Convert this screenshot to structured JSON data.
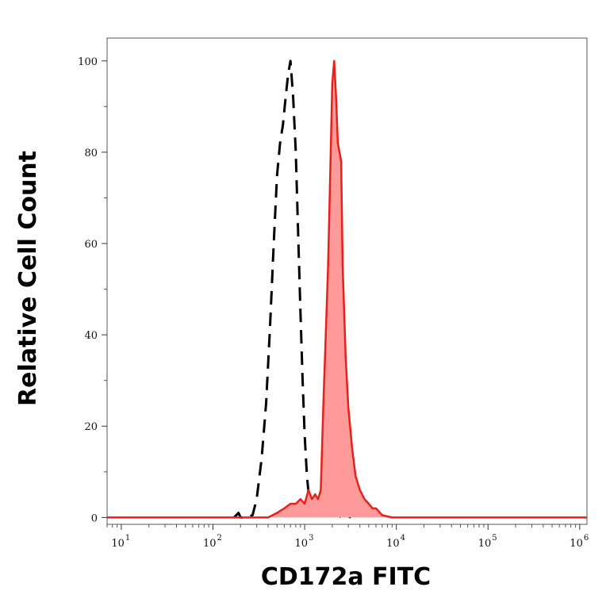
{
  "chart_data": {
    "type": "area",
    "xlabel": "CD172a FITC",
    "ylabel": "Relative Cell Count",
    "x_scale": "log",
    "xlim": [
      7,
      1200000
    ],
    "ylim": [
      -1.5,
      105
    ],
    "y_ticks": [
      0,
      20,
      40,
      60,
      80,
      100
    ],
    "x_ticks": [
      {
        "value": 10,
        "base": "10",
        "exp": "1"
      },
      {
        "value": 100,
        "base": "10",
        "exp": "2"
      },
      {
        "value": 1000,
        "base": "10",
        "exp": "3"
      },
      {
        "value": 10000,
        "base": "10",
        "exp": "4"
      },
      {
        "value": 100000,
        "base": "10",
        "exp": "5"
      },
      {
        "value": 1000000,
        "base": "10",
        "exp": "6"
      }
    ],
    "grid": false,
    "legend": "none",
    "series": [
      {
        "style": "dashed",
        "color": "#000000",
        "fill": "none",
        "x": [
          170,
          190,
          200,
          230,
          270,
          300,
          340,
          380,
          420,
          460,
          500,
          540,
          580,
          620,
          660,
          700,
          750,
          800,
          850,
          900,
          950,
          1000,
          1060,
          1120,
          1200,
          1300,
          1400,
          1500,
          1650,
          1800,
          2000,
          2200,
          2500,
          2800,
          3200
        ],
        "y": [
          0,
          1,
          0,
          0,
          0.5,
          4,
          13,
          25,
          42,
          60,
          75,
          82,
          86,
          92,
          97,
          100,
          92,
          80,
          62,
          45,
          30,
          18,
          9,
          4,
          3,
          5,
          4,
          2,
          3,
          2,
          1,
          1,
          0,
          0.5,
          0
        ]
      },
      {
        "style": "solid",
        "color": "#e8201a",
        "fill": "#ff9a9a",
        "x": [
          7,
          50,
          150,
          300,
          400,
          500,
          600,
          700,
          800,
          900,
          1000,
          1100,
          1200,
          1300,
          1400,
          1500,
          1600,
          1700,
          1800,
          1900,
          2000,
          2100,
          2200,
          2300,
          2400,
          2500,
          2600,
          2800,
          3000,
          3300,
          3600,
          4000,
          4500,
          5000,
          5500,
          6000,
          7000,
          9000,
          20000,
          100000,
          1200000
        ],
        "y": [
          0,
          0,
          0,
          0,
          0,
          1,
          2,
          3,
          3,
          4,
          3,
          6,
          4,
          5,
          4,
          6,
          25,
          40,
          55,
          75,
          95,
          100,
          92,
          82,
          80,
          78,
          55,
          35,
          24,
          15,
          9,
          6,
          4,
          3,
          2,
          2,
          0.5,
          0,
          0,
          0,
          0
        ]
      }
    ]
  }
}
